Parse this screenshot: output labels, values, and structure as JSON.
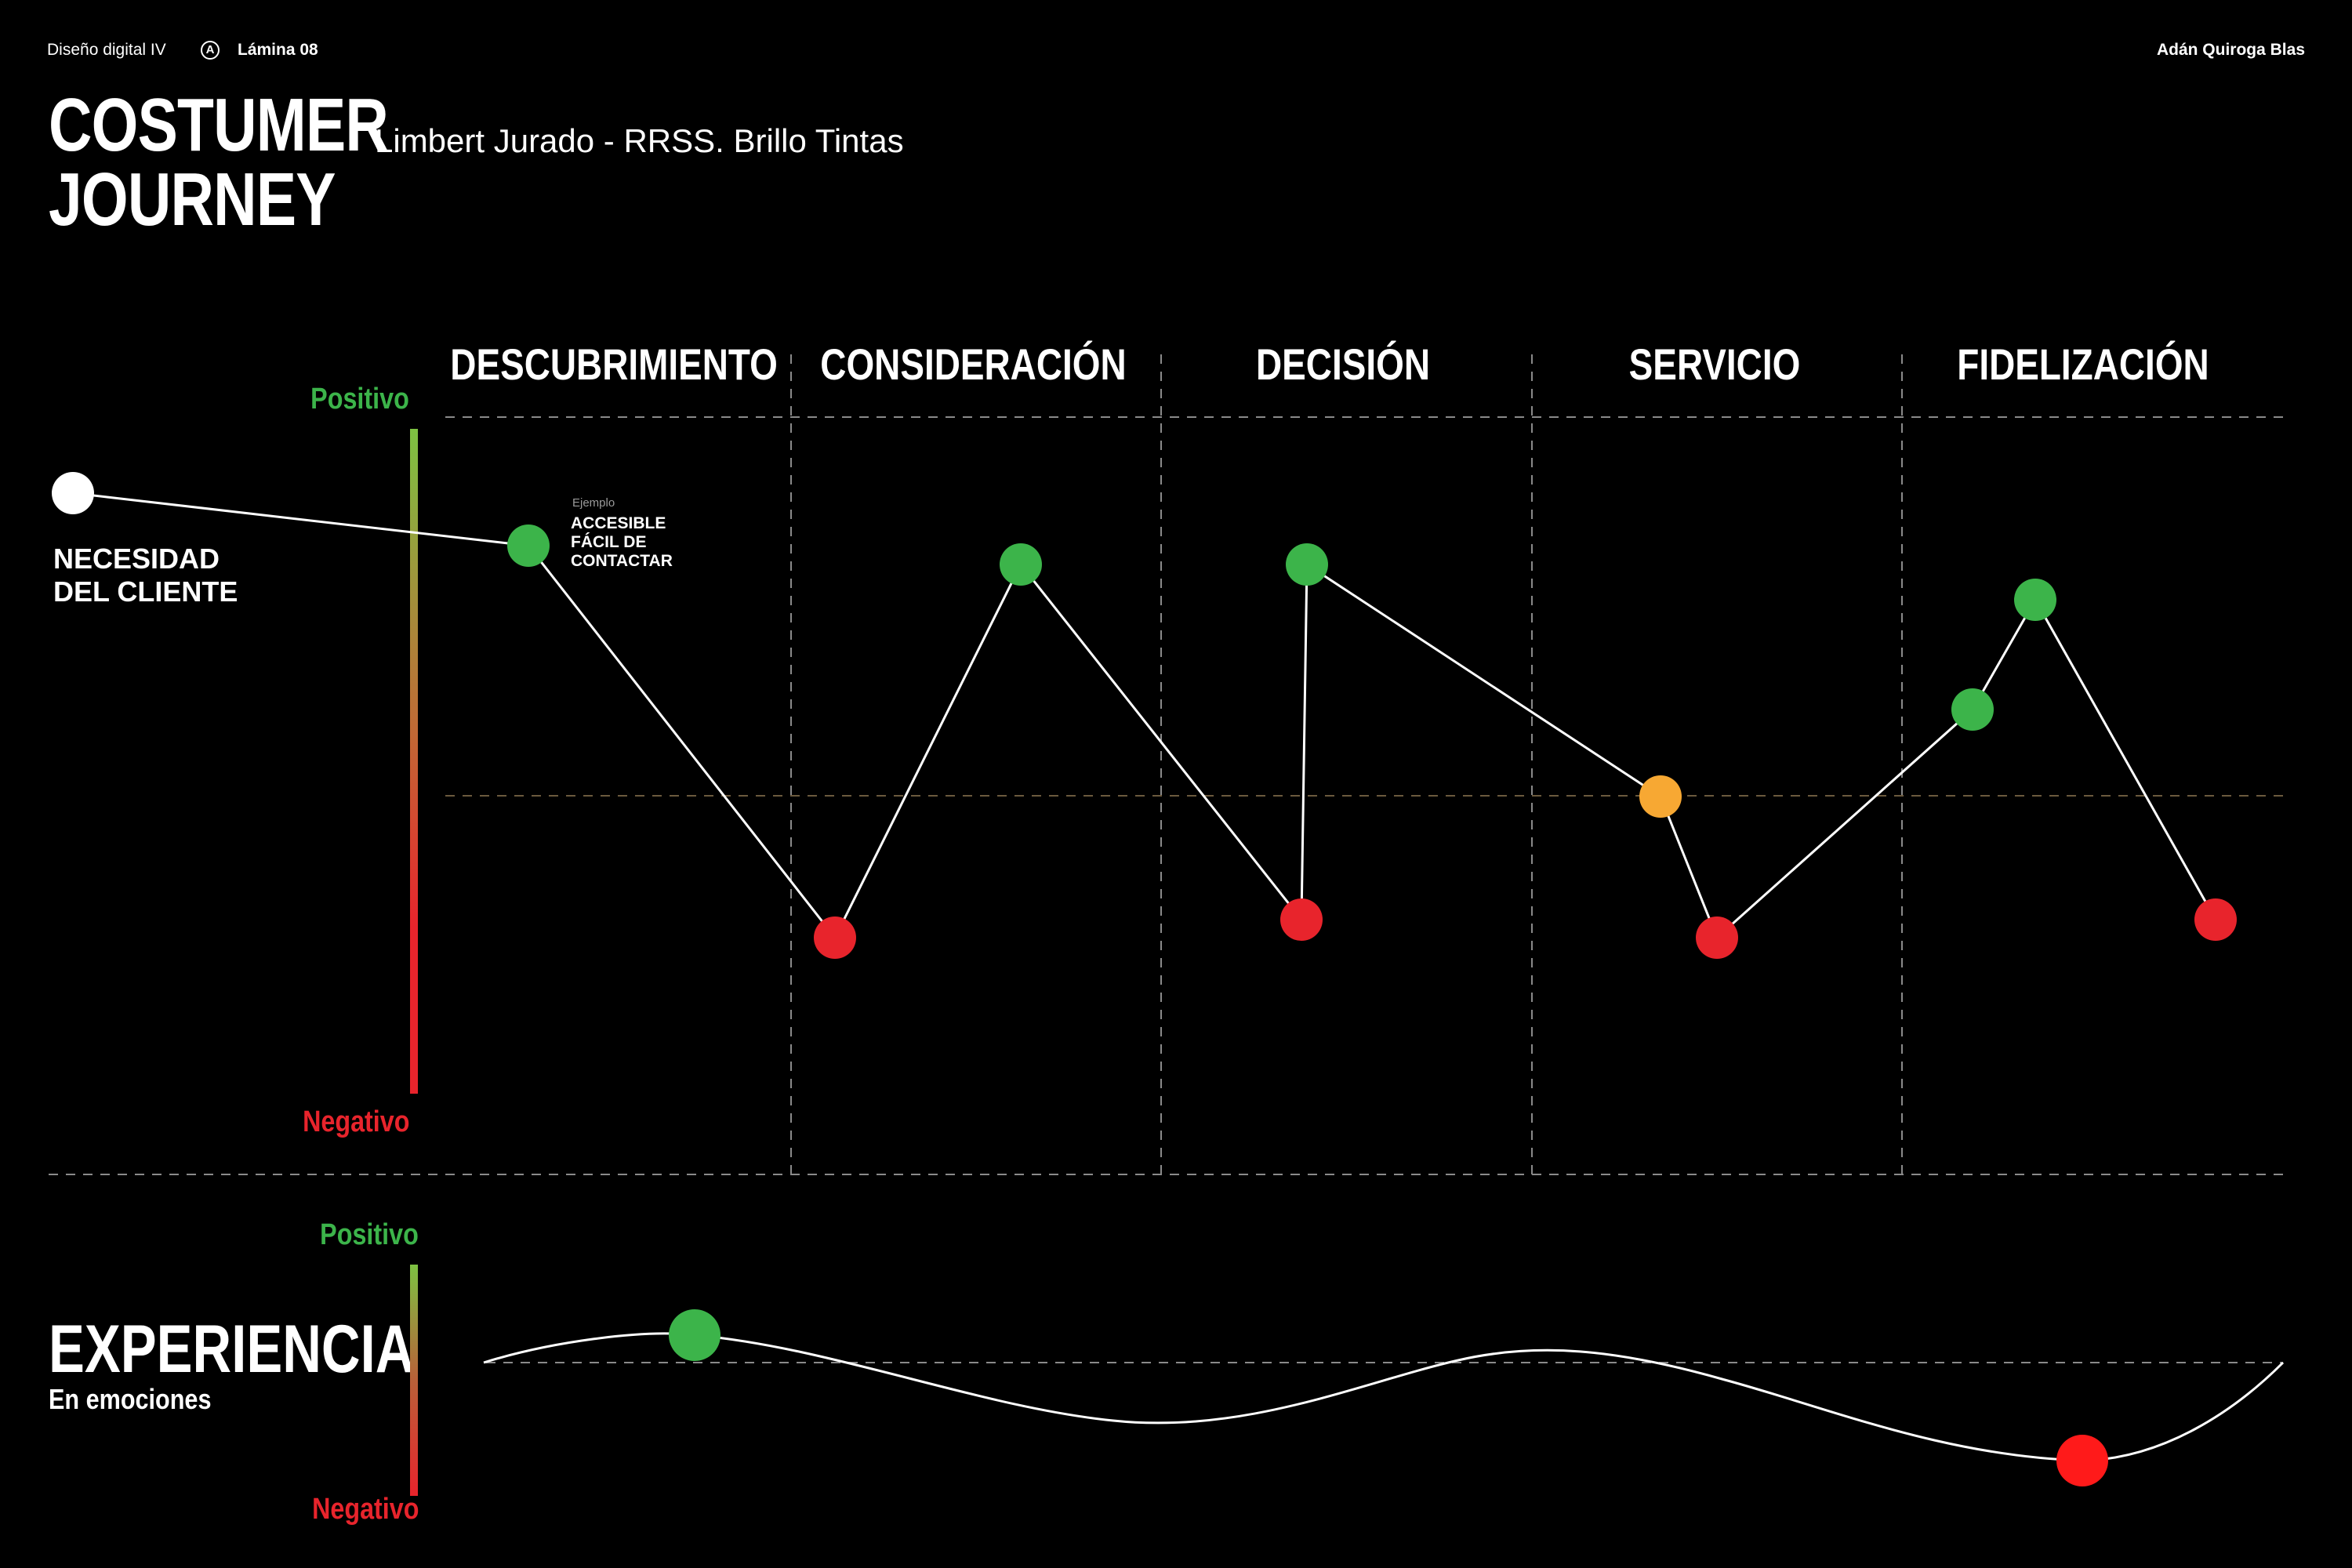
{
  "header": {
    "course": "Diseño digital IV",
    "logo_letter": "A",
    "sheet": "Lámina 08",
    "author": "Adán Quiroga Blas"
  },
  "title": {
    "line1": "COSTUMER",
    "line2": "JOURNEY",
    "subtitle": "Limbert Jurado - RRSS. Brillo Tintas"
  },
  "stages": [
    "DESCUBRIMIENTO",
    "CONSIDERACIÓN",
    "DECISIÓN",
    "SERVICIO",
    "FIDELIZACIÓN"
  ],
  "journey": {
    "scale_positive": "Positivo",
    "scale_negative": "Negativo",
    "start_label_line1": "NECESIDAD",
    "start_label_line2": "DEL CLIENTE",
    "example_label": "Ejemplo",
    "example_text_line1": "ACCESIBLE",
    "example_text_line2": "FÁCIL DE",
    "example_text_line3": "CONTACTAR",
    "colors": {
      "positive": "#3cb44a",
      "neutral": "#f7a833",
      "negative": "#e8242c",
      "start": "#ffffff"
    }
  },
  "chart_data": {
    "type": "line",
    "points": [
      {
        "stage": "start",
        "sentiment": "start"
      },
      {
        "stage": "DESCUBRIMIENTO",
        "sentiment": "positive"
      },
      {
        "stage": "DESCUBRIMIENTO",
        "sentiment": "negative"
      },
      {
        "stage": "CONSIDERACIÓN",
        "sentiment": "positive"
      },
      {
        "stage": "DECISIÓN",
        "sentiment": "negative"
      },
      {
        "stage": "DECISIÓN",
        "sentiment": "positive"
      },
      {
        "stage": "SERVICIO",
        "sentiment": "neutral"
      },
      {
        "stage": "SERVICIO",
        "sentiment": "negative"
      },
      {
        "stage": "FIDELIZACIÓN",
        "sentiment": "positive"
      },
      {
        "stage": "FIDELIZACIÓN",
        "sentiment": "positive"
      },
      {
        "stage": "FIDELIZACIÓN",
        "sentiment": "negative"
      }
    ]
  },
  "experience": {
    "title": "EXPERIENCIA",
    "subtitle": "En emociones",
    "scale_positive": "Positivo",
    "scale_negative": "Negativo",
    "peak_color": "#3cb44a",
    "trough_color": "#ff1a1a"
  }
}
